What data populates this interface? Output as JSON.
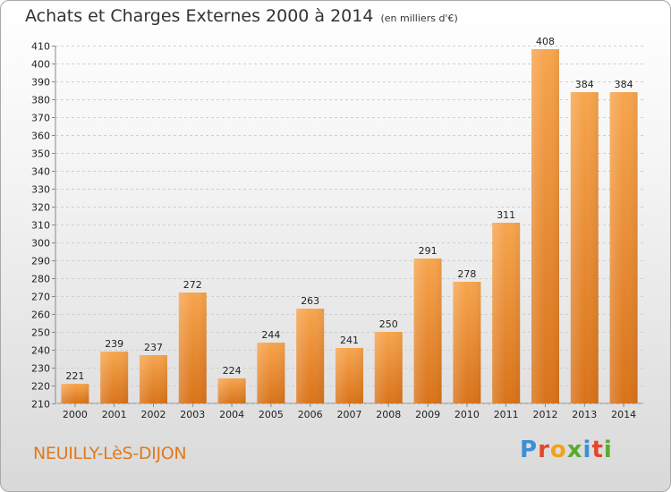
{
  "header": {
    "title": "Achats et Charges Externes 2000 à 2014",
    "unit": "(en milliers d'€)"
  },
  "footer": {
    "commune": "NEUILLY-LèS-DIJON",
    "logo_letters": [
      "P",
      "r",
      "o",
      "x",
      "i",
      "t",
      "i"
    ],
    "logo_colors": [
      "#3a8fd6",
      "#e2472c",
      "#f0a21a",
      "#5aaa2e",
      "#3a8fd6",
      "#e2472c",
      "#5aaa2e"
    ]
  },
  "chart_data": {
    "type": "bar",
    "title": "Achats et Charges Externes 2000 à 2014",
    "subtitle": "(en milliers d'€)",
    "categories": [
      "2000",
      "2001",
      "2002",
      "2003",
      "2004",
      "2005",
      "2006",
      "2007",
      "2008",
      "2009",
      "2010",
      "2011",
      "2012",
      "2013",
      "2014"
    ],
    "values": [
      221,
      239,
      237,
      272,
      224,
      244,
      263,
      241,
      250,
      291,
      278,
      311,
      408,
      384,
      384
    ],
    "ylim": [
      210,
      410
    ],
    "yticks": [
      210,
      220,
      230,
      240,
      250,
      260,
      270,
      280,
      290,
      300,
      310,
      320,
      330,
      340,
      350,
      360,
      370,
      380,
      390,
      400,
      410
    ],
    "grid": true,
    "bar_color": "#f0922e"
  }
}
